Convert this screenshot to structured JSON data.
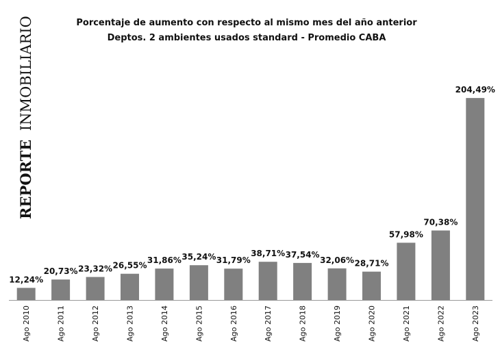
{
  "chart_data": {
    "type": "bar",
    "title": "Porcentaje de aumento con respecto al mismo mes del año anterior",
    "subtitle": "Deptos. 2 ambientes usados standard - Promedio CABA",
    "watermark": {
      "word1": "REPORTE",
      "word2": "INMOBILIARIO"
    },
    "categories": [
      "Ago 2010",
      "Ago 2011",
      "Ago 2012",
      "Ago 2013",
      "Ago 2014",
      "Ago 2015",
      "Ago 2016",
      "Ago 2017",
      "Ago 2018",
      "Ago 2019",
      "Ago 2020",
      "Ago 2021",
      "Ago 2022",
      "Ago 2023"
    ],
    "values": [
      12.24,
      20.73,
      23.32,
      26.55,
      31.86,
      35.24,
      31.79,
      38.71,
      37.54,
      32.06,
      28.71,
      57.98,
      70.38,
      204.49
    ],
    "value_labels": [
      "12,24%",
      "20,73%",
      "23,32%",
      "26,55%",
      "31,86%",
      "35,24%",
      "31,79%",
      "38,71%",
      "37,54%",
      "32,06%",
      "28,71%",
      "57,98%",
      "70,38%",
      "204,49%"
    ],
    "xlabel": "",
    "ylabel": "",
    "ylim": [
      0,
      220
    ],
    "grid": false,
    "colors": {
      "bar": "#808080",
      "axis": "#999999",
      "text": "#111111"
    }
  }
}
